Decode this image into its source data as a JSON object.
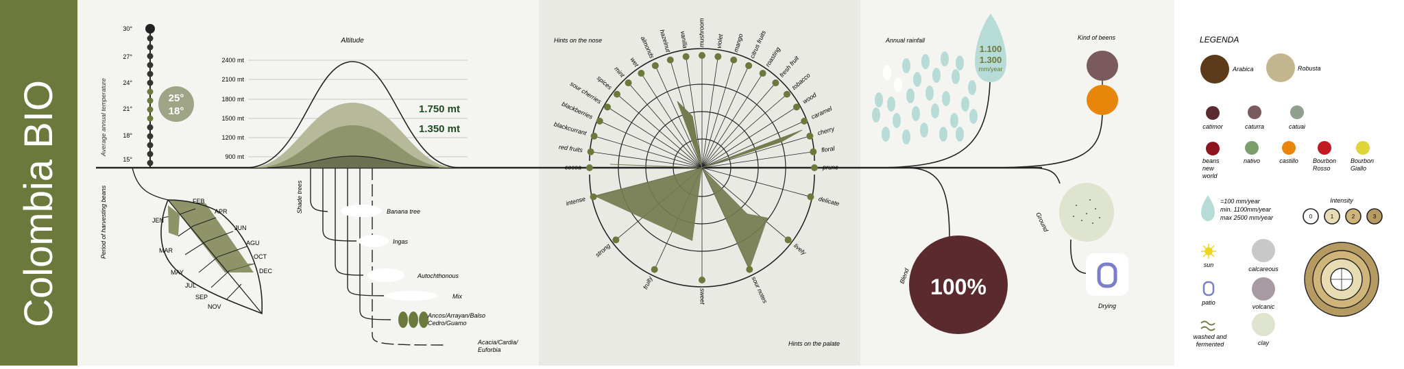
{
  "title": "Colombia BIO",
  "temperature": {
    "axis_label": "Average annual temperature",
    "ticks": [
      "30°",
      "27°",
      "24°",
      "21°",
      "18°",
      "15°"
    ],
    "badge_high": "25°",
    "badge_low": "18°"
  },
  "altitude": {
    "label": "Altitude",
    "ticks": [
      "2400 mt",
      "2100 mt",
      "1800 mt",
      "1500 mt",
      "1200 mt",
      "900 mt"
    ],
    "value_high": "1.750 mt",
    "value_low": "1.350 mt"
  },
  "harvest": {
    "label": "Period of harvesting beans",
    "months": [
      "FEB",
      "APR",
      "JEN",
      "JUN",
      "AGU",
      "MAR",
      "OCT",
      "DEC",
      "MAY",
      "JUL",
      "SEP",
      "NOV"
    ]
  },
  "shade": {
    "label": "Shade trees",
    "items": [
      "Banana tree",
      "Ingas",
      "Autochthonous",
      "Mix",
      "Ancos/Arrayan/Balso",
      "Cedro/Guamo",
      "Acacia/Cardia/",
      "Euforbia"
    ]
  },
  "flavor": {
    "nose_label": "Hints on the nose",
    "palate_label": "Hints on the palate",
    "nose_notes": [
      "cocoa",
      "red fruits",
      "blackcurrant",
      "blackberries",
      "sour cherries",
      "spices",
      "mint",
      "wet",
      "almonds",
      "hazelnut",
      "vanilla",
      "mushroom",
      "violet",
      "mango",
      "citrus fruits",
      "roasting",
      "fresh fruit",
      "tobacco",
      "wood",
      "caramel",
      "cherry",
      "floral",
      "prune"
    ],
    "palate_notes": [
      "intense",
      "strong",
      "fruity",
      "sweet",
      "sour notes",
      "lively",
      "delicate"
    ]
  },
  "rainfall": {
    "label": "Annual rainfall",
    "value_min": "1.100",
    "value_max": "1.300",
    "unit": "mm/year"
  },
  "beans": {
    "label": "Kind of beens"
  },
  "blend": {
    "label": "Blend",
    "value": "100%"
  },
  "ground": {
    "label": "Ground"
  },
  "drying": {
    "label": "Drying"
  },
  "legend": {
    "title": "LEGENDA",
    "arabica": "Arabica",
    "robusta": "Robusta",
    "varieties": [
      "catimor",
      "caturra",
      "catuai"
    ],
    "varieties2": [
      "beans",
      "new",
      "world",
      "nativo",
      "castillo",
      "Bourbon",
      "Rosso",
      "Bourbon",
      "Giallo"
    ],
    "rain_line1": "=100 mm/year",
    "rain_line2": "min. 1100mm/year",
    "rain_line3": "max 2500 mm/year",
    "intensity_label": "Intensity",
    "intensity_levels": [
      "0",
      "1",
      "2",
      "3"
    ],
    "sun": "sun",
    "calcareous": "calcareous",
    "patio": "patio",
    "volcanic": "volcanic",
    "washed1": "washed and",
    "washed2": "fermented",
    "clay": "clay"
  },
  "colors": {
    "sidebar": "#6b7a3c",
    "olive": "#7a8458",
    "olive_light": "#b6b99a",
    "palate_fill": "#737b4f",
    "rain": "#b7dcd7",
    "blend": "#5a2a2e",
    "arabica": "#5b3b1a",
    "robusta": "#c3b58e",
    "orange": "#e8860c",
    "bean_mauve": "#7b5a5e",
    "panel_bg": "#eceee6"
  }
}
